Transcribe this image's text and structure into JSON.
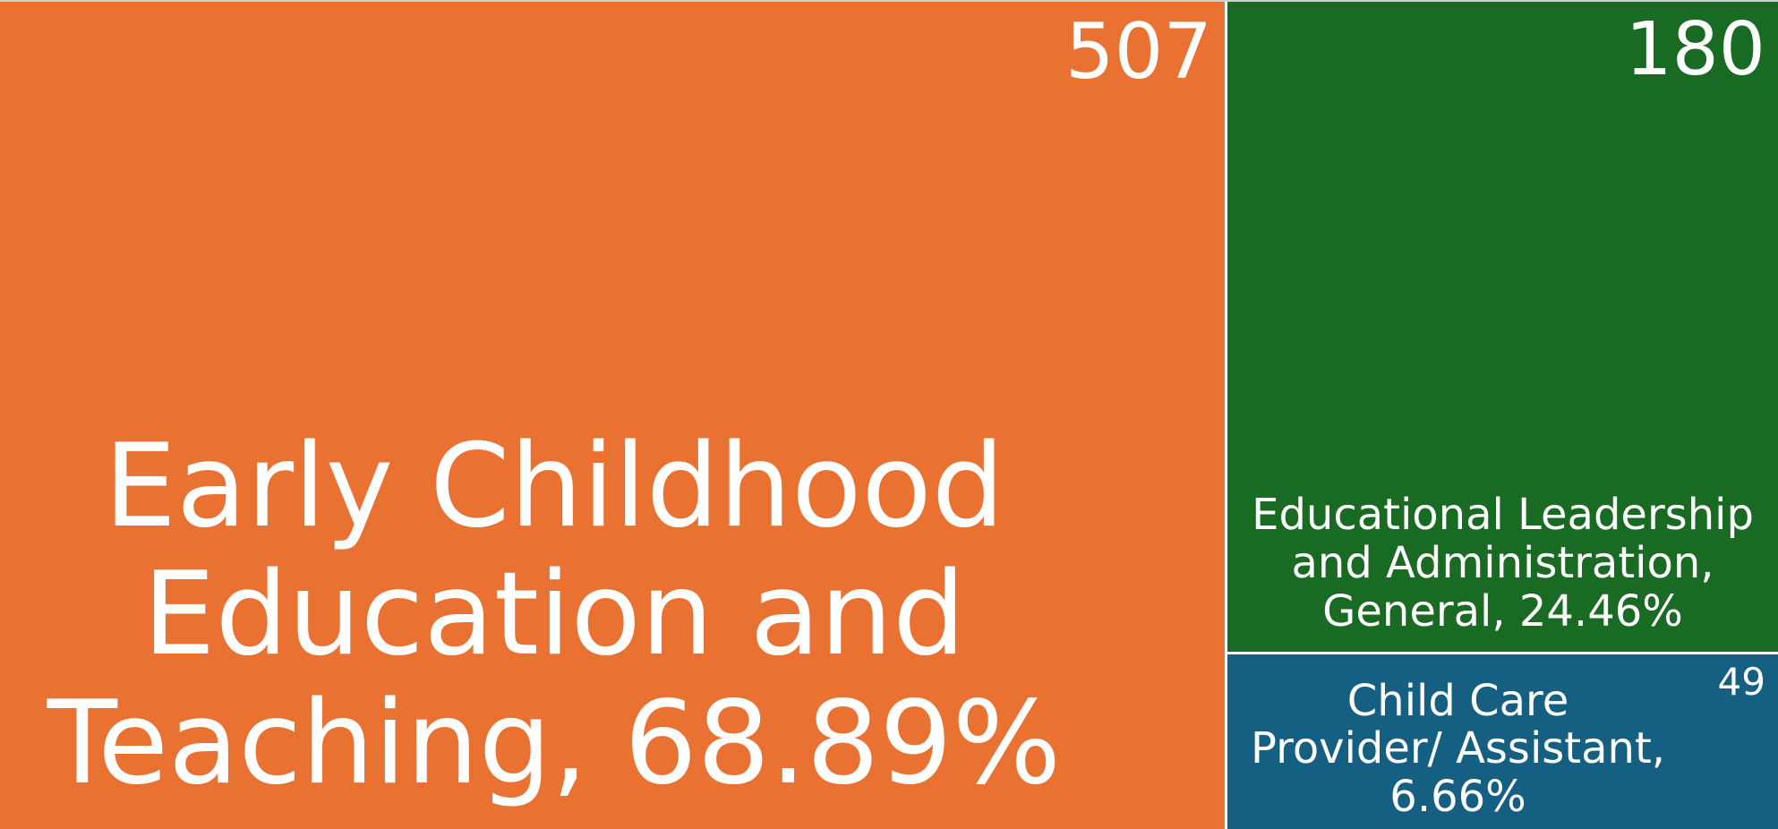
{
  "chart_data": {
    "type": "treemap",
    "categories": [
      "Early Childhood Education and Teaching, 68.89%",
      "Educational Leadership and Administration, General, 24.46%",
      "Child Care Provider/ Assistant, 6.66%"
    ],
    "values": [
      507,
      180,
      49
    ],
    "colors": [
      "#e97132",
      "#196b24",
      "#156082"
    ]
  }
}
